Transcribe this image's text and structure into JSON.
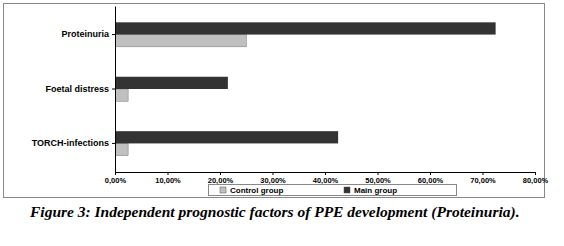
{
  "chart_data": {
    "type": "bar",
    "orientation": "horizontal",
    "title": "Figure 3: Independent prognostic factors of PPE development (Proteinuria).",
    "categories": [
      "Proteinuria",
      "Foetal distress",
      "TORCH-infections"
    ],
    "series": [
      {
        "name": "Control group",
        "color": "#c0c0c0",
        "values": [
          25,
          2.5,
          2.5
        ]
      },
      {
        "name": "Main group",
        "color": "#333333",
        "values": [
          72.5,
          21.5,
          42.5
        ]
      }
    ],
    "xlim": [
      0,
      80
    ],
    "xticks": [
      {
        "value": 0,
        "label": "0,00%"
      },
      {
        "value": 10,
        "label": "10,00%"
      },
      {
        "value": 20,
        "label": "20,00%"
      },
      {
        "value": 30,
        "label": "30,00%"
      },
      {
        "value": 40,
        "label": "40,00%"
      },
      {
        "value": 50,
        "label": "50,00%"
      },
      {
        "value": 60,
        "label": "60,00%"
      },
      {
        "value": 70,
        "label": "70,00%"
      },
      {
        "value": 80,
        "label": "80,00%"
      }
    ],
    "legend": "bottom",
    "grid": false
  }
}
